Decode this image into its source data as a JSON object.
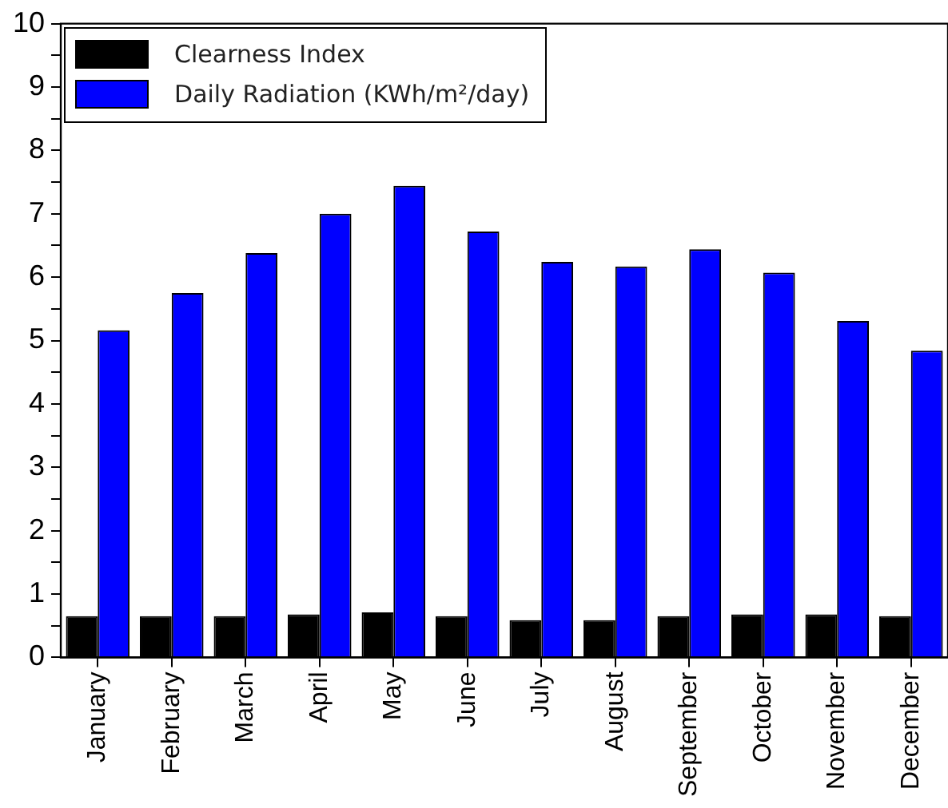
{
  "chart_data": {
    "type": "bar",
    "categories": [
      "January",
      "February",
      "March",
      "April",
      "May",
      "June",
      "July",
      "August",
      "September",
      "October",
      "November",
      "December"
    ],
    "series": [
      {
        "name": "Clearness Index",
        "color": "#000000",
        "values": [
          0.65,
          0.65,
          0.65,
          0.68,
          0.71,
          0.65,
          0.59,
          0.59,
          0.65,
          0.68,
          0.68,
          0.65
        ]
      },
      {
        "name": "Daily Radiation (KWh/m²/day)",
        "color": "#0000ff",
        "values": [
          5.16,
          5.75,
          6.38,
          7.0,
          7.44,
          6.72,
          6.24,
          6.17,
          6.44,
          6.07,
          5.31,
          4.84
        ]
      }
    ],
    "ylim": [
      0,
      10
    ],
    "yticks": [
      0,
      {
        "value": 0.5,
        "label": null
      },
      1,
      {
        "value": 1.5,
        "label": null
      },
      2,
      {
        "value": 2.5,
        "label": null
      },
      3,
      {
        "value": 3.5,
        "label": null
      },
      4,
      {
        "value": 4.5,
        "label": null
      },
      5,
      {
        "value": 5.5,
        "label": null
      },
      6,
      {
        "value": 6.5,
        "label": null
      },
      7,
      {
        "value": 7.5,
        "label": null
      },
      8,
      {
        "value": 8.5,
        "label": null
      },
      9,
      {
        "value": 9.5,
        "label": null
      },
      10
    ],
    "grid": false,
    "legend": "top left"
  }
}
